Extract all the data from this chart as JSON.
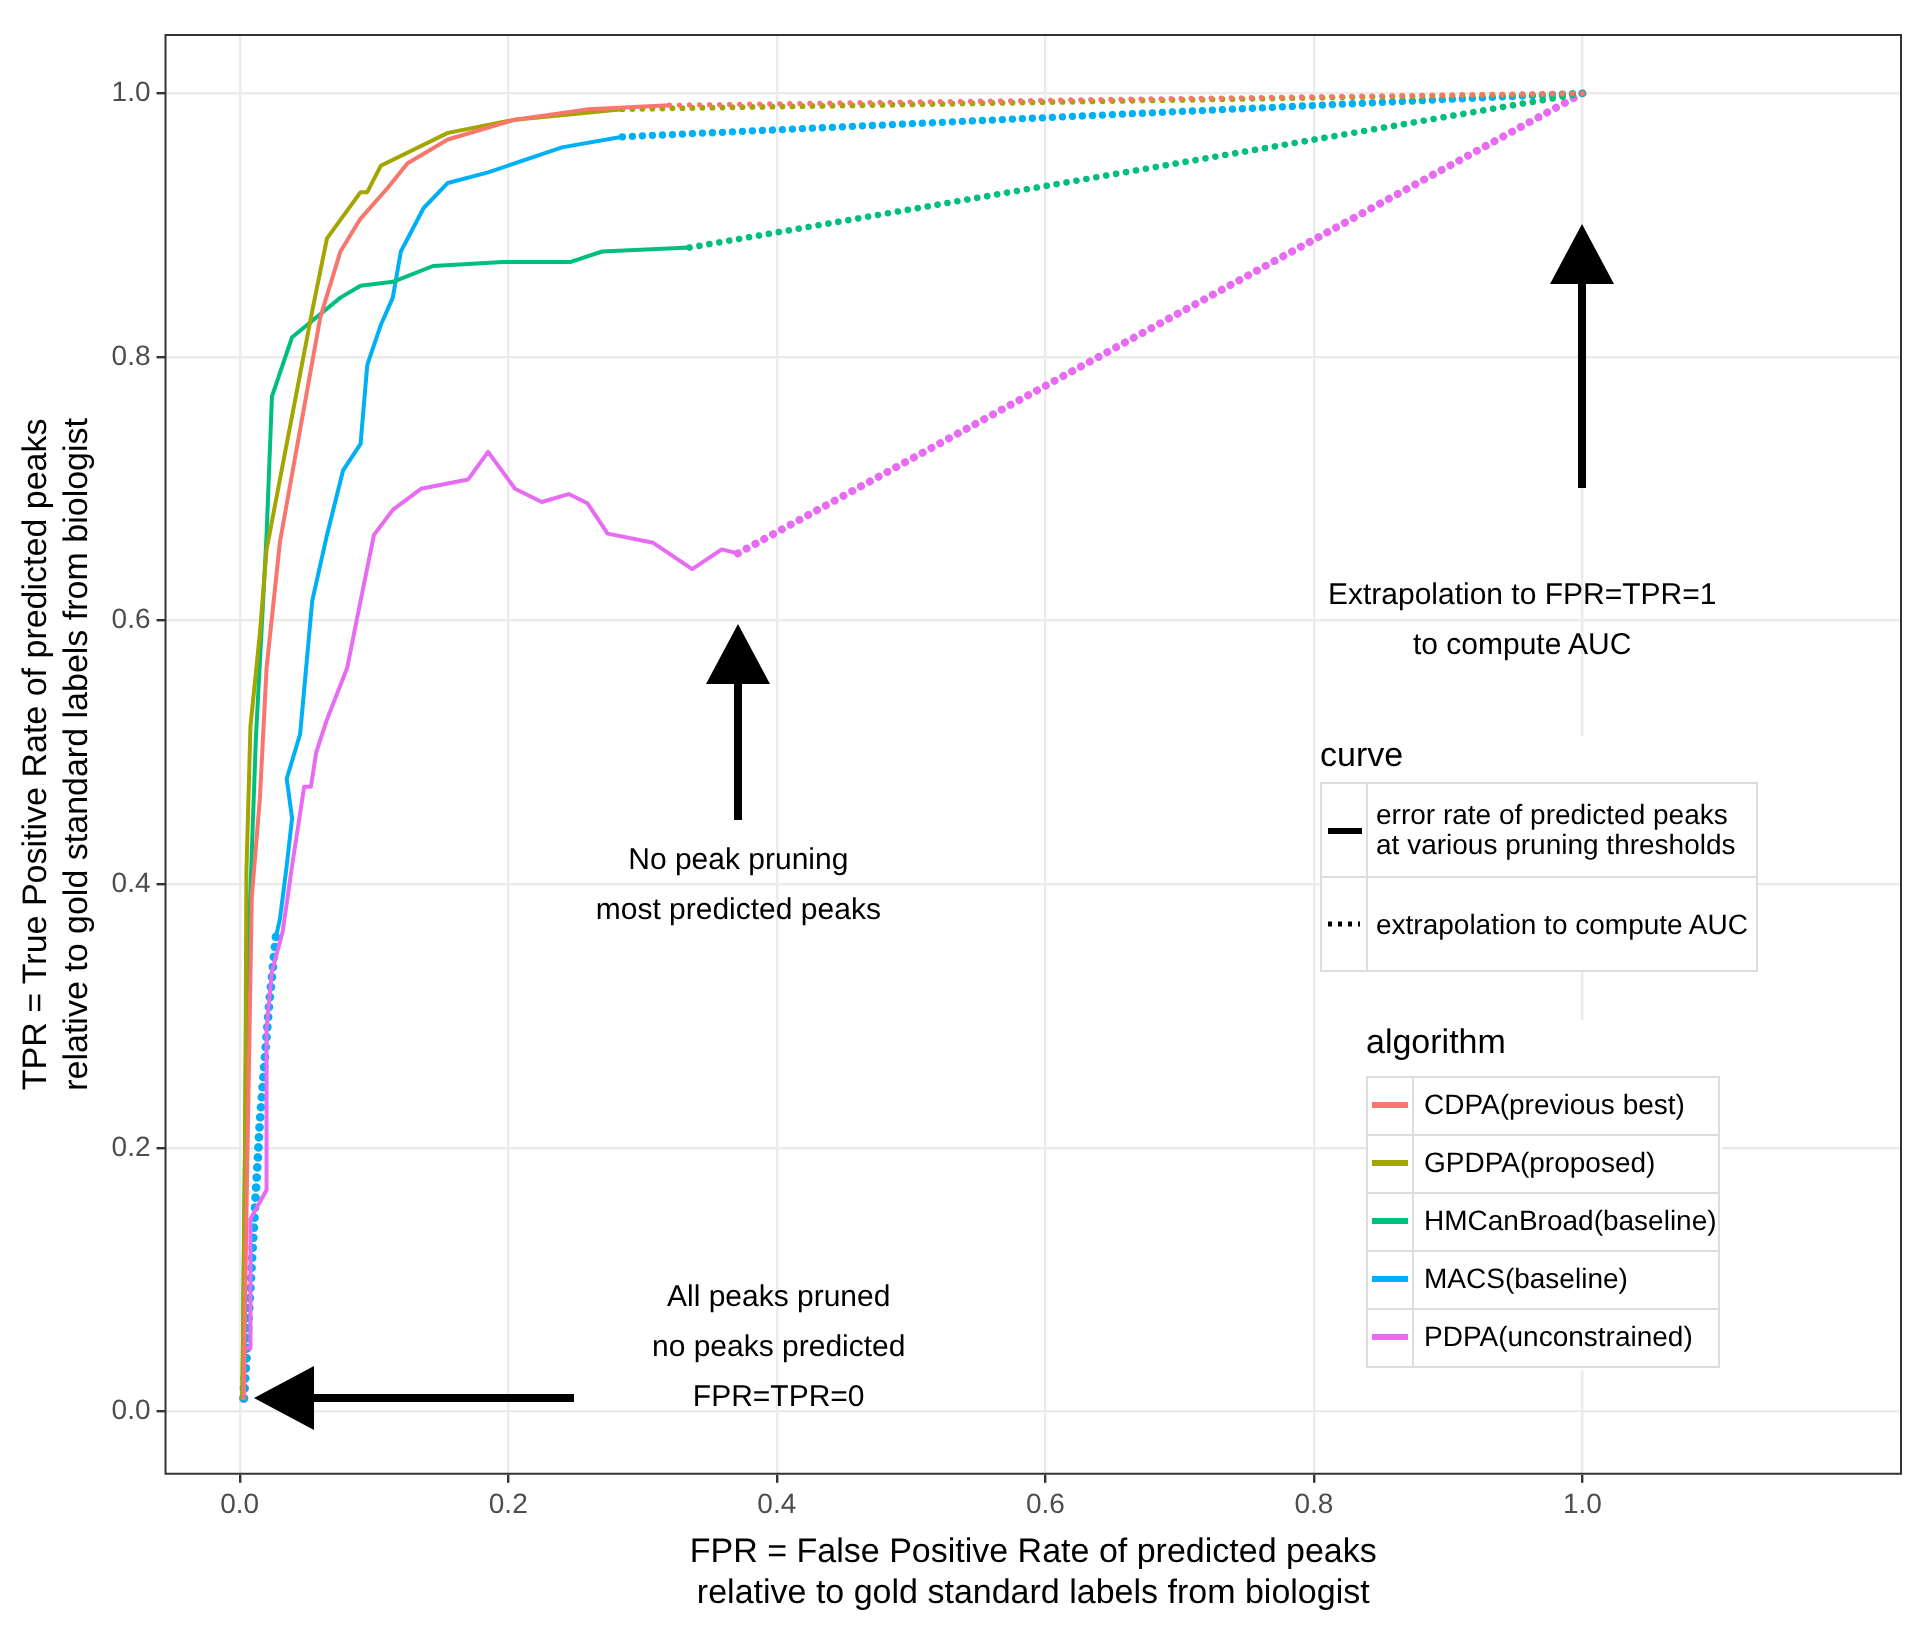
{
  "chart_data": {
    "type": "line",
    "xlabel": "FPR = False Positive Rate of predicted peaks\nrelative to gold standard labels from biologist",
    "ylabel": "TPR = True Positive Rate of predicted peaks\nrelative to gold standard labels from biologist",
    "legend_title": "algorithm",
    "legend": "right",
    "grid": true,
    "marker": "none",
    "xlim": [
      -0.056,
      1.238
    ],
    "ylim": [
      -0.048,
      1.045
    ],
    "xticks": [
      {
        "value": 0,
        "label": "0.0"
      },
      {
        "value": 0.2,
        "label": "0.2"
      },
      {
        "value": 0.4,
        "label": "0.4"
      },
      {
        "value": 0.6,
        "label": "0.6"
      },
      {
        "value": 0.8,
        "label": "0.8"
      },
      {
        "value": 1,
        "label": "1.0"
      }
    ],
    "yticks": [
      {
        "value": 0,
        "label": "0.0"
      },
      {
        "value": 0.2,
        "label": "0.2"
      },
      {
        "value": 0.4,
        "label": "0.4"
      },
      {
        "value": 0.6,
        "label": "0.6"
      },
      {
        "value": 0.8,
        "label": "0.8"
      },
      {
        "value": 1,
        "label": "1.0"
      }
    ],
    "series": [
      {
        "name": "CDPA(previous best)",
        "color": "#f8766d",
        "x": [
          0.003,
          0.005,
          0.009,
          0.015,
          0.02,
          0.03,
          0.045,
          0.06,
          0.075,
          0.09,
          0.11,
          0.125,
          0.155,
          0.205,
          0.26,
          0.32
        ],
        "values": [
          0.01,
          0.15,
          0.39,
          0.465,
          0.564,
          0.66,
          0.745,
          0.83,
          0.88,
          0.905,
          0.928,
          0.947,
          0.965,
          0.98,
          0.988,
          0.991
        ]
      },
      {
        "name": "GPDPA(proposed)",
        "color": "#a3a500",
        "x": [
          0.002,
          0.004,
          0.005,
          0.008,
          0.015,
          0.02,
          0.035,
          0.054,
          0.065,
          0.09,
          0.095,
          0.105,
          0.155,
          0.205,
          0.285
        ],
        "values": [
          0.01,
          0.2,
          0.41,
          0.52,
          0.59,
          0.654,
          0.734,
          0.835,
          0.89,
          0.925,
          0.925,
          0.945,
          0.97,
          0.98,
          0.988
        ]
      },
      {
        "name": "HMCanBroad(baseline)",
        "color": "#00bf7d",
        "x": [
          0.002,
          0.005,
          0.012,
          0.02,
          0.024,
          0.039,
          0.075,
          0.09,
          0.114,
          0.144,
          0.196,
          0.246,
          0.27,
          0.335
        ],
        "values": [
          0.01,
          0.31,
          0.51,
          0.665,
          0.77,
          0.815,
          0.845,
          0.854,
          0.857,
          0.869,
          0.872,
          0.872,
          0.88,
          0.883
        ]
      },
      {
        "name": "MACS(baseline)",
        "color": "#00b0f6",
        "x": [
          0.027,
          0.03,
          0.035,
          0.039,
          0.035,
          0.045,
          0.054,
          0.065,
          0.077,
          0.09,
          0.095,
          0.105,
          0.114,
          0.12,
          0.137,
          0.155,
          0.185,
          0.24,
          0.285
        ],
        "values": [
          0.36,
          0.374,
          0.414,
          0.45,
          0.48,
          0.514,
          0.615,
          0.665,
          0.714,
          0.734,
          0.794,
          0.824,
          0.845,
          0.88,
          0.913,
          0.932,
          0.94,
          0.959,
          0.967
        ]
      },
      {
        "name": "PDPA(unconstrained)",
        "color": "#e76bf3",
        "x": [
          0.005,
          0.008,
          0.008,
          0.02,
          0.02,
          0.024,
          0.032,
          0.039,
          0.048,
          0.053,
          0.057,
          0.065,
          0.08,
          0.09,
          0.095,
          0.1,
          0.114,
          0.135,
          0.17,
          0.185,
          0.205,
          0.225,
          0.245,
          0.259,
          0.274,
          0.308,
          0.337,
          0.359,
          0.371
        ],
        "values": [
          0.048,
          0.048,
          0.146,
          0.168,
          0.29,
          0.334,
          0.364,
          0.414,
          0.474,
          0.474,
          0.5,
          0.525,
          0.564,
          0.615,
          0.64,
          0.665,
          0.684,
          0.7,
          0.707,
          0.728,
          0.7,
          0.69,
          0.696,
          0.689,
          0.666,
          0.659,
          0.639,
          0.654,
          0.651
        ]
      },
      {
        "color": "#f8766d",
        "line_style": "dotted",
        "x": [
          0.32,
          1
        ],
        "values": [
          0.991,
          1
        ]
      },
      {
        "color": "#a3a500",
        "line_style": "dotted",
        "x": [
          0.285,
          1
        ],
        "values": [
          0.988,
          1
        ]
      },
      {
        "color": "#00bf7d",
        "line_style": "dotted",
        "x": [
          0.335,
          1
        ],
        "values": [
          0.883,
          1
        ]
      },
      {
        "color": "#00b0f6",
        "line_style": "dotted",
        "x": [
          0.285,
          1
        ],
        "values": [
          0.967,
          1
        ]
      },
      {
        "color": "#e76bf3",
        "line_style": "dotted",
        "x": [
          0.371,
          1
        ],
        "values": [
          0.651,
          1
        ]
      },
      {
        "color": "#00b0f6",
        "line_style": "dotted",
        "x": [
          0.003,
          0.005,
          0.015,
          0.022,
          0.027
        ],
        "values": [
          0.01,
          0.04,
          0.22,
          0.31,
          0.36
        ]
      },
      {
        "color": "#e76bf3",
        "line_style": "dotted",
        "x": [
          0.003,
          0.005
        ],
        "values": [
          0.01,
          0.048
        ]
      }
    ],
    "annotations": [
      "No peak pruning\nmost predicted peaks",
      "All peaks pruned\nno peaks predicted\nFPR=TPR=0",
      "Extrapolation to FPR=TPR=1\nto compute AUC",
      "curve",
      "error rate of predicted peaks\nat various pruning thresholds",
      "extrapolation to compute AUC"
    ]
  }
}
